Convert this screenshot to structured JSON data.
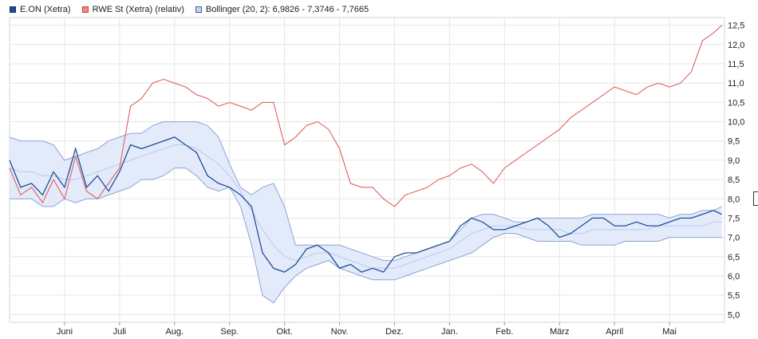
{
  "chart_data": {
    "type": "line",
    "title": "",
    "xlabel": "",
    "ylabel": "",
    "ylim": [
      4.8,
      12.7
    ],
    "yticks": [
      5.0,
      5.5,
      6.0,
      6.5,
      7.0,
      7.5,
      8.0,
      8.5,
      9.0,
      9.5,
      10.0,
      10.5,
      11.0,
      11.5,
      12.0,
      12.5
    ],
    "ytick_labels": [
      "5,0",
      "5,5",
      "6,0",
      "6,5",
      "7,0",
      "7,5",
      "8,0",
      "8,5",
      "9,0",
      "9,5",
      "10,0",
      "10,5",
      "11,0",
      "11,5",
      "12,0",
      "12,5"
    ],
    "x_tick_labels": [
      "Juni",
      "Juli",
      "Aug.",
      "Sep.",
      "Okt.",
      "Nov.",
      "Dez.",
      "Jan.",
      "Feb.",
      "März",
      "April",
      "Mai"
    ],
    "x_tick_pos": [
      1.0,
      2.0,
      3.0,
      4.0,
      5.0,
      6.0,
      7.0,
      8.0,
      9.0,
      10.0,
      11.0,
      12.0
    ],
    "xlim": [
      0.0,
      13.0
    ],
    "grid": true,
    "legend_position": "top-left",
    "series": [
      {
        "name": "E.ON (Xetra)",
        "color": "#1f4e99",
        "x": [
          0.0,
          0.2,
          0.4,
          0.6,
          0.8,
          1.0,
          1.2,
          1.4,
          1.6,
          1.8,
          2.0,
          2.2,
          2.4,
          2.6,
          2.8,
          3.0,
          3.2,
          3.4,
          3.6,
          3.8,
          4.0,
          4.2,
          4.4,
          4.6,
          4.8,
          5.0,
          5.2,
          5.4,
          5.6,
          5.8,
          6.0,
          6.2,
          6.4,
          6.6,
          6.8,
          7.0,
          7.2,
          7.4,
          7.6,
          7.8,
          8.0,
          8.2,
          8.4,
          8.6,
          8.8,
          9.0,
          9.2,
          9.4,
          9.6,
          9.8,
          10.0,
          10.2,
          10.4,
          10.6,
          10.8,
          11.0,
          11.2,
          11.4,
          11.6,
          11.8,
          12.0,
          12.2,
          12.4,
          12.6,
          12.8,
          12.95
        ],
        "y": [
          9.0,
          8.3,
          8.4,
          8.1,
          8.7,
          8.3,
          9.3,
          8.3,
          8.6,
          8.2,
          8.7,
          9.4,
          9.3,
          9.4,
          9.5,
          9.6,
          9.4,
          9.2,
          8.6,
          8.4,
          8.3,
          8.1,
          7.8,
          6.6,
          6.2,
          6.1,
          6.3,
          6.7,
          6.8,
          6.6,
          6.2,
          6.3,
          6.1,
          6.2,
          6.1,
          6.5,
          6.6,
          6.6,
          6.7,
          6.8,
          6.9,
          7.3,
          7.5,
          7.4,
          7.2,
          7.2,
          7.3,
          7.4,
          7.5,
          7.3,
          7.0,
          7.1,
          7.3,
          7.5,
          7.5,
          7.3,
          7.3,
          7.4,
          7.3,
          7.3,
          7.4,
          7.5,
          7.5,
          7.6,
          7.7,
          7.6
        ]
      },
      {
        "name": "RWE St (Xetra) (relativ)",
        "color": "#e06060",
        "x": [
          0.0,
          0.2,
          0.4,
          0.6,
          0.8,
          1.0,
          1.2,
          1.4,
          1.6,
          1.8,
          2.0,
          2.2,
          2.4,
          2.6,
          2.8,
          3.0,
          3.2,
          3.4,
          3.6,
          3.8,
          4.0,
          4.2,
          4.4,
          4.6,
          4.8,
          5.0,
          5.2,
          5.4,
          5.6,
          5.8,
          6.0,
          6.2,
          6.4,
          6.6,
          6.8,
          7.0,
          7.2,
          7.4,
          7.6,
          7.8,
          8.0,
          8.2,
          8.4,
          8.6,
          8.8,
          9.0,
          9.2,
          9.4,
          9.6,
          9.8,
          10.0,
          10.2,
          10.4,
          10.6,
          10.8,
          11.0,
          11.2,
          11.4,
          11.6,
          11.8,
          12.0,
          12.2,
          12.4,
          12.6,
          12.8,
          12.95
        ],
        "y": [
          8.8,
          8.1,
          8.3,
          7.9,
          8.5,
          8.0,
          9.1,
          8.2,
          8.0,
          8.4,
          8.8,
          10.4,
          10.6,
          11.0,
          11.1,
          11.0,
          10.9,
          10.7,
          10.6,
          10.4,
          10.5,
          10.4,
          10.3,
          10.5,
          10.5,
          9.4,
          9.6,
          9.9,
          10.0,
          9.8,
          9.3,
          8.4,
          8.3,
          8.3,
          8.0,
          7.8,
          8.1,
          8.2,
          8.3,
          8.5,
          8.6,
          8.8,
          8.9,
          8.7,
          8.4,
          8.8,
          9.0,
          9.2,
          9.4,
          9.6,
          9.8,
          10.1,
          10.3,
          10.5,
          10.7,
          10.9,
          10.8,
          10.7,
          10.9,
          11.0,
          10.9,
          11.0,
          11.3,
          12.1,
          12.3,
          12.5
        ]
      },
      {
        "name": "Bollinger (20, 2): 6,9826 - 7,3746 - 7,7665",
        "color": "#3a5ba8",
        "x": [
          0.0,
          0.2,
          0.4,
          0.6,
          0.8,
          1.0,
          1.2,
          1.4,
          1.6,
          1.8,
          2.0,
          2.2,
          2.4,
          2.6,
          2.8,
          3.0,
          3.2,
          3.4,
          3.6,
          3.8,
          4.0,
          4.2,
          4.4,
          4.6,
          4.8,
          5.0,
          5.2,
          5.4,
          5.6,
          5.8,
          6.0,
          6.2,
          6.4,
          6.6,
          6.8,
          7.0,
          7.2,
          7.4,
          7.6,
          7.8,
          8.0,
          8.2,
          8.4,
          8.6,
          8.8,
          9.0,
          9.2,
          9.4,
          9.6,
          9.8,
          10.0,
          10.2,
          10.4,
          10.6,
          10.8,
          11.0,
          11.2,
          11.4,
          11.6,
          11.8,
          12.0,
          12.2,
          12.4,
          12.6,
          12.8,
          12.95
        ],
        "upper": [
          9.6,
          9.5,
          9.5,
          9.5,
          9.4,
          9.0,
          9.1,
          9.2,
          9.3,
          9.5,
          9.6,
          9.7,
          9.7,
          9.9,
          10.0,
          10.0,
          10.0,
          10.0,
          9.9,
          9.6,
          8.9,
          8.3,
          8.1,
          8.3,
          8.4,
          7.8,
          6.8,
          6.8,
          6.8,
          6.8,
          6.8,
          6.7,
          6.6,
          6.5,
          6.4,
          6.4,
          6.5,
          6.6,
          6.7,
          6.8,
          6.9,
          7.2,
          7.5,
          7.6,
          7.6,
          7.5,
          7.4,
          7.4,
          7.5,
          7.5,
          7.5,
          7.5,
          7.5,
          7.6,
          7.6,
          7.6,
          7.6,
          7.6,
          7.6,
          7.6,
          7.5,
          7.6,
          7.6,
          7.7,
          7.7,
          7.8
        ],
        "middle": [
          8.8,
          8.7,
          8.7,
          8.6,
          8.6,
          8.5,
          8.5,
          8.6,
          8.7,
          8.8,
          8.9,
          9.0,
          9.1,
          9.2,
          9.3,
          9.4,
          9.4,
          9.3,
          9.1,
          8.9,
          8.6,
          8.2,
          7.7,
          7.2,
          6.8,
          6.5,
          6.4,
          6.5,
          6.6,
          6.6,
          6.5,
          6.4,
          6.3,
          6.2,
          6.2,
          6.2,
          6.3,
          6.4,
          6.5,
          6.6,
          6.7,
          6.9,
          7.1,
          7.2,
          7.3,
          7.3,
          7.3,
          7.2,
          7.2,
          7.2,
          7.2,
          7.1,
          7.1,
          7.2,
          7.2,
          7.2,
          7.2,
          7.2,
          7.2,
          7.3,
          7.3,
          7.3,
          7.3,
          7.3,
          7.4,
          7.4
        ],
        "lower": [
          8.0,
          8.0,
          8.0,
          7.8,
          7.8,
          8.0,
          7.9,
          8.0,
          8.0,
          8.1,
          8.2,
          8.3,
          8.5,
          8.5,
          8.6,
          8.8,
          8.8,
          8.6,
          8.3,
          8.2,
          8.3,
          7.8,
          6.8,
          5.5,
          5.3,
          5.7,
          6.0,
          6.2,
          6.3,
          6.4,
          6.2,
          6.1,
          6.0,
          5.9,
          5.9,
          5.9,
          6.0,
          6.1,
          6.2,
          6.3,
          6.4,
          6.5,
          6.6,
          6.8,
          7.0,
          7.1,
          7.1,
          7.0,
          6.9,
          6.9,
          6.9,
          6.9,
          6.8,
          6.8,
          6.8,
          6.8,
          6.9,
          6.9,
          6.9,
          6.9,
          7.0,
          7.0,
          7.0,
          7.0,
          7.0,
          7.0
        ]
      }
    ]
  },
  "style": {
    "eon_color": "#1f4e99",
    "rwe_color": "#e06060",
    "band_fill": "#e3ebfa",
    "band_stroke": "#8ca3d6",
    "middle_color": "#b7c9ee"
  }
}
